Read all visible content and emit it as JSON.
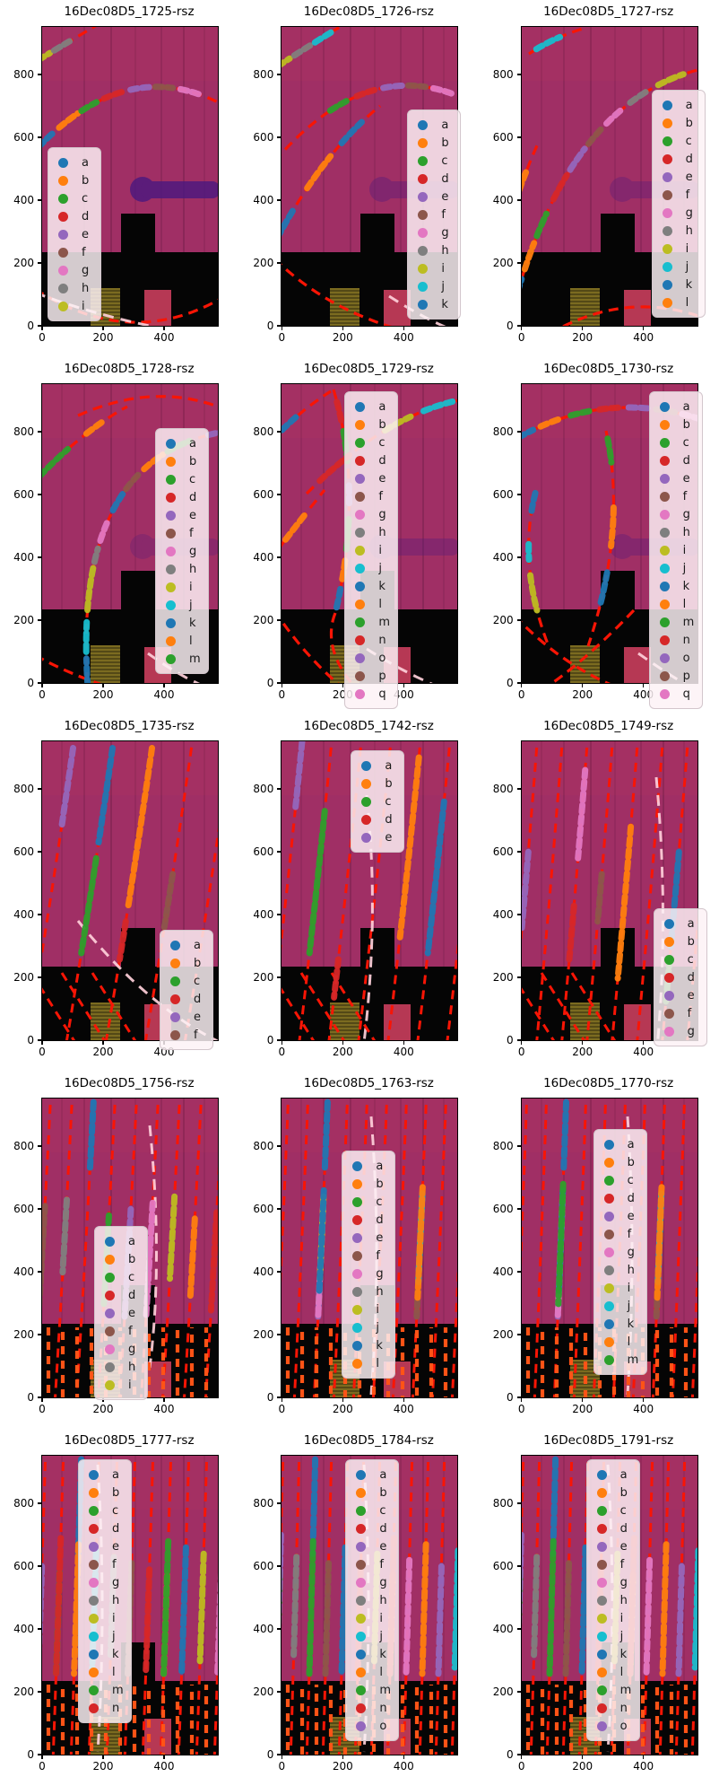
{
  "figure": {
    "kind": "matplotlib-multipanel-figure",
    "rows": 5,
    "cols": 3
  },
  "palette": {
    "cycle": [
      "#1f77b4",
      "#ff7f0e",
      "#2ca02c",
      "#d62728",
      "#9467bd",
      "#8c564b",
      "#e377c2",
      "#7f7f7f",
      "#bcbd22",
      "#17becf"
    ]
  },
  "colors": {
    "background_magenta": "#a02f65",
    "region_black": "#050505",
    "dashed_red": "#f81505",
    "dashed_orange": "#ff5316",
    "dashed_pink": "#ffd0da",
    "hatch_khaki": "#7b6b20",
    "rect_crimson": "#c63d5b",
    "blob_purple": "#4a1880",
    "legend_bg": "#fdf2f6"
  },
  "axes": {
    "xticks": [
      "0",
      "200",
      "400"
    ],
    "yticks": [
      "0",
      "200",
      "400",
      "600",
      "800"
    ],
    "xlim": [
      0,
      575
    ],
    "ylim": [
      0,
      950
    ]
  },
  "chart_data": [
    {
      "type": "image",
      "title": "16Dec08D5_1725-rsz",
      "legend": [
        "a",
        "b",
        "c",
        "d",
        "e",
        "f",
        "g",
        "h",
        "i"
      ]
    },
    {
      "type": "image",
      "title": "16Dec08D5_1726-rsz",
      "legend": [
        "a",
        "b",
        "c",
        "d",
        "e",
        "f",
        "g",
        "h",
        "i",
        "j",
        "k"
      ]
    },
    {
      "type": "image",
      "title": "16Dec08D5_1727-rsz",
      "legend": [
        "a",
        "b",
        "c",
        "d",
        "e",
        "f",
        "g",
        "h",
        "i",
        "j",
        "k",
        "l"
      ]
    },
    {
      "type": "image",
      "title": "16Dec08D5_1728-rsz",
      "legend": [
        "a",
        "b",
        "c",
        "d",
        "e",
        "f",
        "g",
        "h",
        "i",
        "j",
        "k",
        "l",
        "m"
      ]
    },
    {
      "type": "image",
      "title": "16Dec08D5_1729-rsz",
      "legend": [
        "a",
        "b",
        "c",
        "d",
        "e",
        "f",
        "g",
        "h",
        "i",
        "j",
        "k",
        "l",
        "m",
        "n",
        "o",
        "p",
        "q"
      ]
    },
    {
      "type": "image",
      "title": "16Dec08D5_1730-rsz",
      "legend": [
        "a",
        "b",
        "c",
        "d",
        "e",
        "f",
        "g",
        "h",
        "i",
        "j",
        "k",
        "l",
        "m",
        "n",
        "o",
        "p",
        "q"
      ]
    },
    {
      "type": "image",
      "title": "16Dec08D5_1735-rsz",
      "legend": [
        "a",
        "b",
        "c",
        "d",
        "e",
        "f"
      ]
    },
    {
      "type": "image",
      "title": "16Dec08D5_1742-rsz",
      "legend": [
        "a",
        "b",
        "c",
        "d",
        "e"
      ]
    },
    {
      "type": "image",
      "title": "16Dec08D5_1749-rsz",
      "legend": [
        "a",
        "b",
        "c",
        "d",
        "e",
        "f",
        "g"
      ]
    },
    {
      "type": "image",
      "title": "16Dec08D5_1756-rsz",
      "legend": [
        "a",
        "b",
        "c",
        "d",
        "e",
        "f",
        "g",
        "h",
        "i"
      ]
    },
    {
      "type": "image",
      "title": "16Dec08D5_1763-rsz",
      "legend": [
        "a",
        "b",
        "c",
        "d",
        "e",
        "f",
        "g",
        "h",
        "i",
        "j",
        "k",
        "l"
      ]
    },
    {
      "type": "image",
      "title": "16Dec08D5_1770-rsz",
      "legend": [
        "a",
        "b",
        "c",
        "d",
        "e",
        "f",
        "g",
        "h",
        "i",
        "j",
        "k",
        "l",
        "m"
      ]
    },
    {
      "type": "image",
      "title": "16Dec08D5_1777-rsz",
      "legend": [
        "a",
        "b",
        "c",
        "d",
        "e",
        "f",
        "g",
        "h",
        "i",
        "j",
        "k",
        "l",
        "m",
        "n"
      ]
    },
    {
      "type": "image",
      "title": "16Dec08D5_1784-rsz",
      "legend": [
        "a",
        "b",
        "c",
        "d",
        "e",
        "f",
        "g",
        "h",
        "i",
        "j",
        "k",
        "l",
        "m",
        "n",
        "o"
      ]
    },
    {
      "type": "image",
      "title": "16Dec08D5_1791-rsz",
      "legend": [
        "a",
        "b",
        "c",
        "d",
        "e",
        "f",
        "g",
        "h",
        "i",
        "j",
        "k",
        "l",
        "m",
        "n",
        "o"
      ]
    }
  ]
}
